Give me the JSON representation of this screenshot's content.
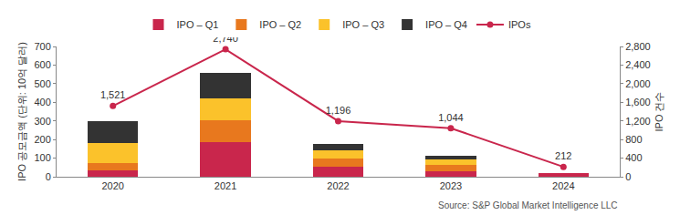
{
  "chart_data": {
    "type": "bar",
    "stacked": true,
    "grid": false,
    "legend": "top",
    "categories": [
      "2020",
      "2021",
      "2022",
      "2023",
      "2024"
    ],
    "y_label": "IPO 공모금액 (단위: 10억 달러)",
    "y2_label": "IPO 건수",
    "source": "Source: S&P Global Market Intelligence LLC",
    "ylim": [
      0,
      700
    ],
    "yticks": [
      0,
      100,
      200,
      300,
      400,
      500,
      600,
      700
    ],
    "y2lim": [
      0,
      2800
    ],
    "y2ticks": [
      0,
      400,
      800,
      {
        "value": 1200,
        "label": "1,200"
      },
      {
        "value": 1600,
        "label": "1,600"
      },
      {
        "value": 2000,
        "label": "2,000"
      },
      {
        "value": 2400,
        "label": "2,400"
      },
      {
        "value": 2800,
        "label": "2,800"
      }
    ],
    "series": [
      {
        "name": "IPO – Q1",
        "color": "#c9264c",
        "values": [
          35,
          185,
          55,
          30,
          20
        ]
      },
      {
        "name": "IPO – Q2",
        "color": "#e8781e",
        "values": [
          40,
          120,
          45,
          35,
          null
        ]
      },
      {
        "name": "IPO – Q3",
        "color": "#fbc22b",
        "values": [
          105,
          115,
          40,
          30,
          null
        ]
      },
      {
        "name": "IPO – Q4",
        "color": "#333333",
        "values": [
          120,
          140,
          35,
          20,
          null
        ]
      },
      {
        "name": "IPOs",
        "type": "line",
        "axis": "y2",
        "color": "#c9264c",
        "marker": "circle",
        "line_style": "solid",
        "data_labels": true,
        "values": [
          1521,
          2740,
          1196,
          1044,
          212
        ],
        "value_labels": [
          "1,521",
          "2,740",
          "1,196",
          "1,044",
          "212"
        ]
      }
    ]
  }
}
